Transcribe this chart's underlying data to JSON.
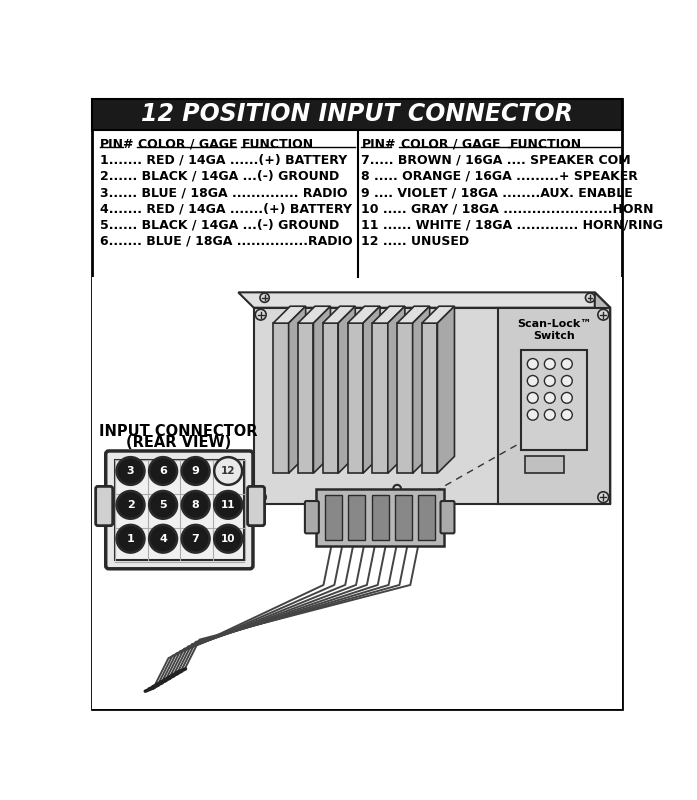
{
  "title": "12 POSITION INPUT CONNECTOR",
  "title_bg": "#1a1a1a",
  "title_color": "#ffffff",
  "header_left": [
    "PIN#",
    "COLOR / GAGE",
    "FUNCTION"
  ],
  "header_right": [
    "PIN#",
    "COLOR / GAGE",
    "FUNCTION"
  ],
  "left_rows": [
    "1....... RED / 14GA ......(+) BATTERY",
    "2...... BLACK / 14GA ...(-) GROUND",
    "3...... BLUE / 18GA .............. RADIO",
    "4....... RED / 14GA .......(+) BATTERY",
    "5...... BLACK / 14GA ...(-) GROUND",
    "6....... BLUE / 18GA ...............RADIO"
  ],
  "right_rows": [
    "7..... BROWN / 16GA .... SPEAKER COM",
    "8 ..... ORANGE / 16GA .........+ SPEAKER",
    "9 .... VIOLET / 18GA ........AUX. ENABLE",
    "10 ..... GRAY / 18GA .......................HORN",
    "11 ...... WHITE / 18GA ............. HORN/RING",
    "12 ..... UNUSED"
  ],
  "connector_label1": "INPUT CONNECTOR",
  "connector_label2": "(REAR VIEW)",
  "scan_lock_label": "Scan-Lock™\nSwitch",
  "bg_color": "#ffffff",
  "pin_numbers": [
    3,
    6,
    9,
    12,
    2,
    5,
    8,
    11,
    1,
    4,
    7,
    10
  ],
  "pin_filled": [
    true,
    true,
    true,
    false,
    true,
    true,
    true,
    true,
    true,
    true,
    true,
    true
  ]
}
